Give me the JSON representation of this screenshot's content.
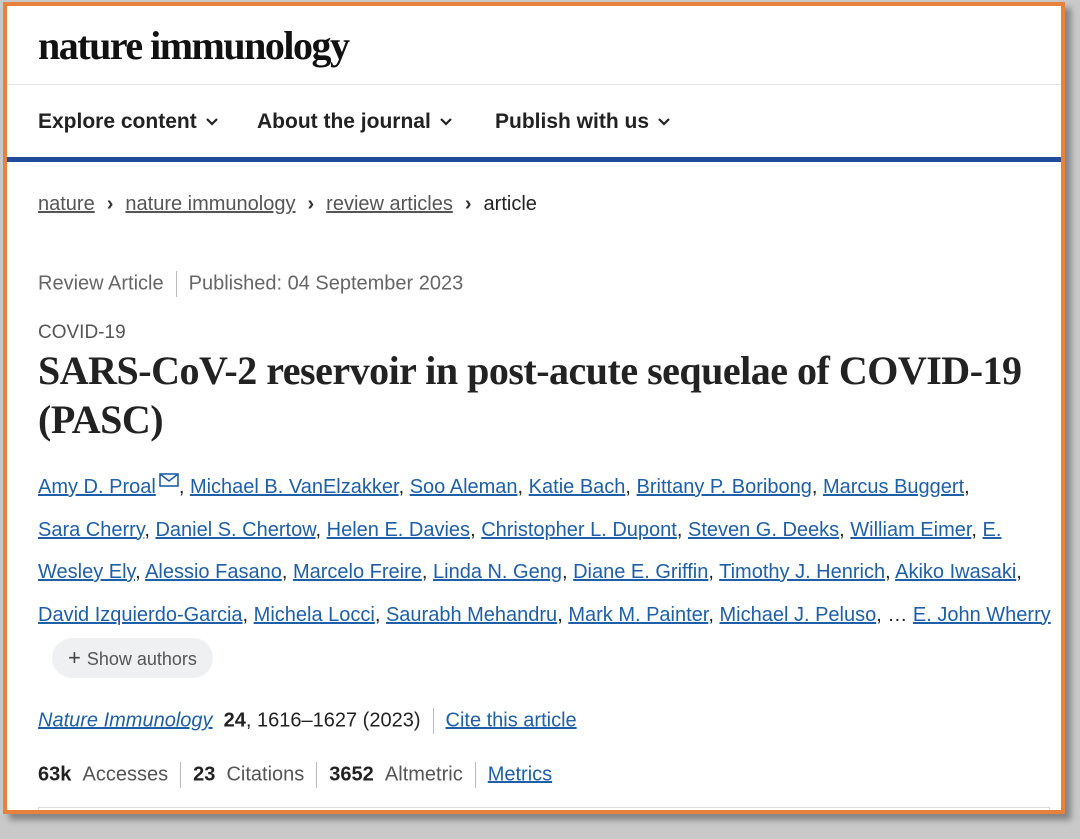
{
  "logo": "nature immunology",
  "nav": {
    "items": [
      {
        "label": "Explore content"
      },
      {
        "label": "About the journal"
      },
      {
        "label": "Publish with us"
      }
    ]
  },
  "breadcrumb": {
    "items": [
      "nature",
      "nature immunology",
      "review articles"
    ],
    "current": "article"
  },
  "article": {
    "type": "Review Article",
    "published": "Published: 04 September 2023",
    "subject": "COVID-19",
    "title": "SARS-CoV-2 reservoir in post-acute sequelae of COVID-19 (PASC)",
    "authors": [
      "Amy D. Proal",
      "Michael B. VanElzakker",
      "Soo Aleman",
      "Katie Bach",
      "Brittany P. Boribong",
      "Marcus Buggert",
      "Sara Cherry",
      "Daniel S. Chertow",
      "Helen E. Davies",
      "Christopher L. Dupont",
      "Steven G. Deeks",
      "William Eimer",
      "E. Wesley Ely",
      "Alessio Fasano",
      "Marcelo Freire",
      "Linda N. Geng",
      "Diane E. Griffin",
      "Timothy J. Henrich",
      "Akiko Iwasaki",
      "David Izquierdo-Garcia",
      "Michela Locci",
      "Saurabh Mehandru",
      "Mark M. Painter",
      "Michael J. Peluso",
      "E. John Wherry"
    ],
    "ellipsis": "…",
    "show_authors": "Show authors",
    "citation": {
      "journal": "Nature Immunology",
      "volume": "24",
      "pages_year": ", 1616–1627 (2023)",
      "cite_label": "Cite this article"
    },
    "metrics": {
      "accesses_value": "63k",
      "accesses_label": "Accesses",
      "citations_value": "23",
      "citations_label": "Citations",
      "altmetric_value": "3652",
      "altmetric_label": "Altmetric",
      "metrics_link": "Metrics"
    }
  }
}
